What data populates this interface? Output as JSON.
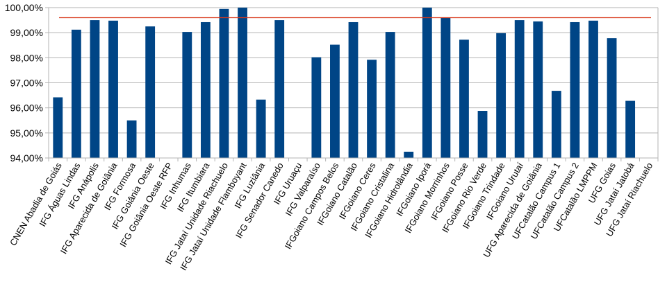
{
  "chart_data": {
    "type": "bar",
    "categories": [
      "CNEN Abadia de Goiás",
      "IFG Águas Lindas",
      "IFG Anápolis",
      "IFG Aparecida de Goiânia",
      "IFG Formosa",
      "IFG Goiânia Oeste",
      "IFG Goiânia Oeste RFP",
      "IFG Inhumas",
      "IFG Itumbiara",
      "IFG Jataí Unidade Riachuelo",
      "IFG Jataí Unidade Flamboyant",
      "IFG Luziânia",
      "IFG Senador Canedo",
      "IFG Uruaçu",
      "IFG Valparaíso",
      "IFGoiano Campos Belos",
      "IFGoiano Catalão",
      "IFGoiano Ceres",
      "IFGoiano Cristalina",
      "IFGoiano Hidrolândia",
      "IFGoiano Iporá",
      "IFGoiano Morrinhos",
      "IFGoiano Posse",
      "IFGoiano Rio Verde",
      "IFGoiano Trindade",
      "IFGoiano Urutaí",
      "UFG Aparecida de Goiânia",
      "UFCatalão Campus 1",
      "UFCatalão Campus 2",
      "UFCatalão LMPPM",
      "UFG Goias",
      "UFG Jataí Jatobá",
      "UFG Jataí Riachuelo"
    ],
    "series": [
      {
        "values": [
          96.42,
          99.12,
          99.5,
          99.48,
          95.5,
          99.25,
          null,
          99.03,
          99.42,
          99.95,
          100.0,
          96.33,
          99.5,
          null,
          98.02,
          98.52,
          99.42,
          97.92,
          99.03,
          94.25,
          100.0,
          99.6,
          98.72,
          95.88,
          98.98,
          99.5,
          99.45,
          96.68,
          99.42,
          99.48,
          98.78,
          96.28,
          null
        ]
      }
    ],
    "reference_line": 99.6,
    "yticks": [
      "94,00%",
      "95,00%",
      "96,00%",
      "97,00%",
      "98,00%",
      "99,00%",
      "100,00%"
    ],
    "ylim": [
      94,
      100
    ],
    "grid": true,
    "colors": {
      "bar": "#004586",
      "reference_line": "#d9391c",
      "grid": "#b3b3b3"
    }
  }
}
